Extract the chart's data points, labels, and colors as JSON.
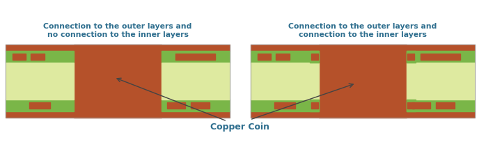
{
  "bg_color": "#ffffff",
  "title_color": "#2E6E8E",
  "label_color": "#2E6E8E",
  "copper_color": "#B5512A",
  "green_color": "#7AB648",
  "light_green_color": "#DEEAA0",
  "coin_label": "Copper Coin",
  "left_title_line1": "Connection to the outer layers and",
  "left_title_line2": "no connection to the inner layers",
  "right_title_line1": "Connection to the outer layers and",
  "right_title_line2": "connection to the inner layers",
  "fig_width": 6.88,
  "fig_height": 2.05
}
